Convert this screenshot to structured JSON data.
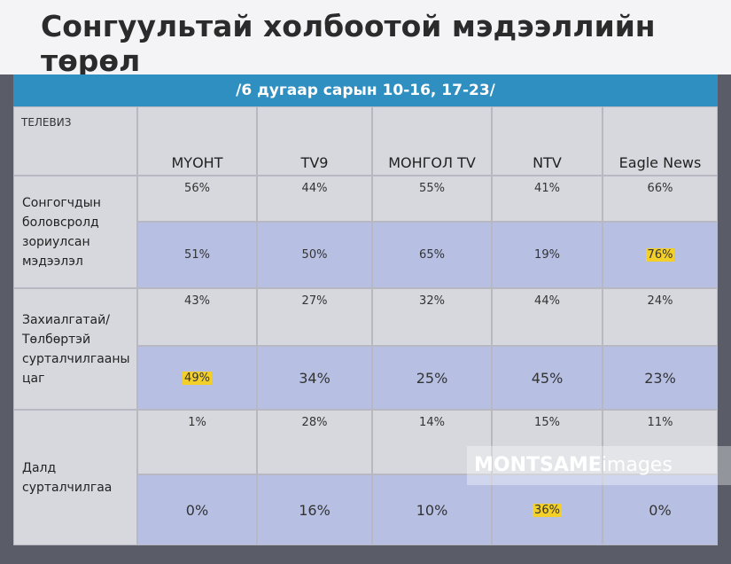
{
  "title": "Сонгуультай холбоотой мэдээллийн төрөл",
  "table": {
    "subtitle": "/6 дугаар сарын 10-16, 17-23/",
    "corner": "ТЕЛЕВИЗ",
    "columns": [
      "МҮОНТ",
      "TV9",
      "МОНГОЛ TV",
      "NTV",
      "Eagle News"
    ],
    "groups": [
      {
        "label": "Сонгогчдын боловсролд зориулсан мэдээлэл",
        "rows": [
          [
            "56%",
            "44%",
            "55%",
            "41%",
            "66%"
          ],
          [
            "51%",
            "50%",
            "65%",
            "19%",
            {
              "text": "76%",
              "highlight": true
            }
          ]
        ]
      },
      {
        "label": "Захиалгатай/ Төлбөртэй сурталчилгааны цаг",
        "rows": [
          [
            "43%",
            "27%",
            "32%",
            "44%",
            "24%"
          ],
          [
            {
              "text": "49%",
              "highlight": true
            },
            "34%",
            "25%",
            "45%",
            "23%"
          ]
        ]
      },
      {
        "label": "Далд сурталчилгаа",
        "rows": [
          [
            "1%",
            "28%",
            "14%",
            "15%",
            "11%"
          ],
          [
            "0%",
            "16%",
            "10%",
            {
              "text": "36%",
              "highlight": true
            },
            "0%"
          ]
        ]
      }
    ]
  },
  "watermark": {
    "brand": "MONTSAME",
    "suffix": "images"
  }
}
